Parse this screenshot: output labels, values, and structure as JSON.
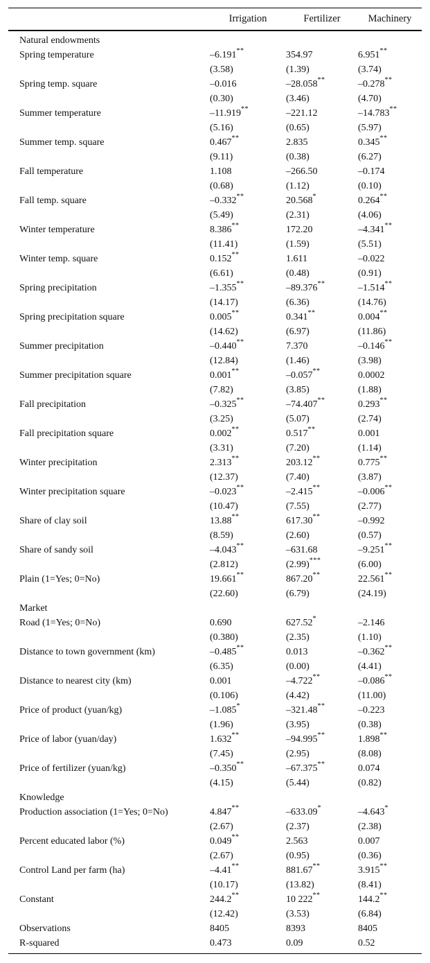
{
  "header": {
    "columns": [
      "Irrigation",
      "Fertilizer",
      "Machinery"
    ]
  },
  "table": {
    "rows": [
      {
        "type": "section",
        "label": "Natural endowments"
      },
      {
        "type": "var",
        "label": "Spring temperature",
        "cells": [
          {
            "coef": "–6.191",
            "stars": "**",
            "t": "(3.58)"
          },
          {
            "coef": "354.97",
            "t": "(1.39)"
          },
          {
            "coef": "6.951",
            "stars": "**",
            "t": "(3.74)"
          }
        ]
      },
      {
        "type": "var",
        "label": "Spring temp. square",
        "cells": [
          {
            "coef": "–0.016",
            "t": "(0.30)"
          },
          {
            "coef": "–28.058",
            "stars": "**",
            "t": "(3.46)"
          },
          {
            "coef": "–0.278",
            "stars": "**",
            "t": "(4.70)"
          }
        ]
      },
      {
        "type": "var",
        "label": "Summer temperature",
        "cells": [
          {
            "coef": "–11.919",
            "stars": "**",
            "t": "(5.16)"
          },
          {
            "coef": "–221.12",
            "t": "(0.65)"
          },
          {
            "coef": "–14.783",
            "stars": "**",
            "t": "(5.97)"
          }
        ]
      },
      {
        "type": "var",
        "label": "Summer temp. square",
        "cells": [
          {
            "coef": "0.467",
            "stars": "**",
            "t": "(9.11)"
          },
          {
            "coef": "2.835",
            "t": "(0.38)"
          },
          {
            "coef": "0.345",
            "stars": "**",
            "t": "(6.27)"
          }
        ]
      },
      {
        "type": "var",
        "label": "Fall temperature",
        "cells": [
          {
            "coef": "1.108",
            "t": "(0.68)"
          },
          {
            "coef": "–266.50",
            "t": "(1.12)"
          },
          {
            "coef": "–0.174",
            "t": "(0.10)"
          }
        ]
      },
      {
        "type": "var",
        "label": "Fall temp. square",
        "cells": [
          {
            "coef": "–0.332",
            "stars": "**",
            "t": "(5.49)"
          },
          {
            "coef": "20.568",
            "stars": "*",
            "t": "(2.31)"
          },
          {
            "coef": "0.264",
            "stars": "**",
            "t": "(4.06)"
          }
        ]
      },
      {
        "type": "var",
        "label": "Winter temperature",
        "cells": [
          {
            "coef": "8.386",
            "stars": "**",
            "t": "(11.41)"
          },
          {
            "coef": "172.20",
            "t": "(1.59)"
          },
          {
            "coef": "–4.341",
            "stars": "**",
            "t": "(5.51)"
          }
        ]
      },
      {
        "type": "var",
        "label": "Winter temp. square",
        "cells": [
          {
            "coef": "0.152",
            "stars": "**",
            "t": "(6.61)"
          },
          {
            "coef": "1.611",
            "t": "(0.48)"
          },
          {
            "coef": "–0.022",
            "t": "(0.91)"
          }
        ]
      },
      {
        "type": "var",
        "label": "Spring precipitation",
        "cells": [
          {
            "coef": "–1.355",
            "stars": "**",
            "t": "(14.17)"
          },
          {
            "coef": "–89.376",
            "stars": "**",
            "t": "(6.36)"
          },
          {
            "coef": "–1.514",
            "stars": "**",
            "t": "(14.76)"
          }
        ]
      },
      {
        "type": "var",
        "label": "Spring precipitation square",
        "cells": [
          {
            "coef": "0.005",
            "stars": "**",
            "t": "(14.62)"
          },
          {
            "coef": "0.341",
            "stars": "**",
            "t": "(6.97)"
          },
          {
            "coef": "0.004",
            "stars": "**",
            "t": "(11.86)"
          }
        ]
      },
      {
        "type": "var",
        "label": "Summer precipitation",
        "cells": [
          {
            "coef": "–0.440",
            "stars": "**",
            "t": "(12.84)"
          },
          {
            "coef": "7.370",
            "t": "(1.46)"
          },
          {
            "coef": "–0.146",
            "stars": "**",
            "t": "(3.98)"
          }
        ]
      },
      {
        "type": "var",
        "label": "Summer precipitation square",
        "cells": [
          {
            "coef": "0.001",
            "stars": "**",
            "t": "(7.82)"
          },
          {
            "coef": "–0.057",
            "stars": "**",
            "t": "(3.85)"
          },
          {
            "coef": "0.0002",
            "t": "(1.88)"
          }
        ]
      },
      {
        "type": "var",
        "label": "Fall precipitation",
        "cells": [
          {
            "coef": "–0.325",
            "stars": "**",
            "t": "(3.25)"
          },
          {
            "coef": "–74.407",
            "stars": "**",
            "t": "(5.07)"
          },
          {
            "coef": "0.293",
            "stars": "**",
            "t": "(2.74)"
          }
        ]
      },
      {
        "type": "var",
        "label": "Fall precipitation square",
        "cells": [
          {
            "coef": "0.002",
            "stars": "**",
            "t": "(3.31)"
          },
          {
            "coef": "0.517",
            "stars": "**",
            "t": "(7.20)"
          },
          {
            "coef": "0.001",
            "t": "(1.14)"
          }
        ]
      },
      {
        "type": "var",
        "label": "Winter precipitation",
        "cells": [
          {
            "coef": "2.313",
            "stars": "**",
            "t": "(12.37)"
          },
          {
            "coef": "203.12",
            "stars": "**",
            "t": "(7.40)"
          },
          {
            "coef": "0.775",
            "stars": "**",
            "t": "(3.87)"
          }
        ]
      },
      {
        "type": "var",
        "label": "Winter precipitation square",
        "cells": [
          {
            "coef": "–0.023",
            "stars": "**",
            "t": "(10.47)"
          },
          {
            "coef": "–2.415",
            "stars": "**",
            "t": "(7.55)"
          },
          {
            "coef": "–0.006",
            "stars": "**",
            "t": "(2.77)"
          }
        ]
      },
      {
        "type": "var",
        "label": "Share of clay soil",
        "cells": [
          {
            "coef": "13.88",
            "stars": "**",
            "t": "(8.59)"
          },
          {
            "coef": "617.30",
            "stars": "**",
            "t": "(2.60)"
          },
          {
            "coef": "–0.992",
            "t": "(0.57)"
          }
        ]
      },
      {
        "type": "var",
        "label": "Share of sandy soil",
        "cells": [
          {
            "coef": "–4.043",
            "stars": "**",
            "t": "(2.812)"
          },
          {
            "coef": "–631.68",
            "t": "(2.99)",
            "t_stars": "***"
          },
          {
            "coef": "–9.251",
            "stars": "**",
            "t": "(6.00)"
          }
        ]
      },
      {
        "type": "var",
        "label": "Plain (1=Yes; 0=No)",
        "cells": [
          {
            "coef": "19.661",
            "stars": "**",
            "t": "(22.60)"
          },
          {
            "coef": "867.20",
            "stars": "**",
            "t": "(6.79)"
          },
          {
            "coef": "22.561",
            "stars": "**",
            "t": "(24.19)"
          }
        ]
      },
      {
        "type": "section",
        "label": "Market"
      },
      {
        "type": "var",
        "label": "Road (1=Yes; 0=No)",
        "cells": [
          {
            "coef": "0.690",
            "t": "(0.380)"
          },
          {
            "coef": "627.52",
            "stars": "*",
            "t": "(2.35)"
          },
          {
            "coef": "–2.146",
            "t": "(1.10)"
          }
        ]
      },
      {
        "type": "var",
        "label": "Distance to town government (km)",
        "cells": [
          {
            "coef": "–0.485",
            "stars": "**",
            "t": "(6.35)"
          },
          {
            "coef": "0.013",
            "t": "(0.00)"
          },
          {
            "coef": "–0.362",
            "stars": "**",
            "t": "(4.41)"
          }
        ]
      },
      {
        "type": "var",
        "label": "Distance to nearest city (km)",
        "cells": [
          {
            "coef": "0.001",
            "t": "(0.106)"
          },
          {
            "coef": "–4.722",
            "stars": "**",
            "t": "(4.42)"
          },
          {
            "coef": "–0.086",
            "stars": "**",
            "t": "(11.00)"
          }
        ]
      },
      {
        "type": "var",
        "label": "Price of product (yuan/kg)",
        "cells": [
          {
            "coef": "–1.085",
            "stars": "*",
            "t": "(1.96)"
          },
          {
            "coef": "–321.48",
            "stars": "**",
            "t": "(3.95)"
          },
          {
            "coef": "–0.223",
            "t": "(0.38)"
          }
        ]
      },
      {
        "type": "var",
        "label": "Price of labor (yuan/day)",
        "cells": [
          {
            "coef": "1.632",
            "stars": "**",
            "t": "(7.45)"
          },
          {
            "coef": "–94.995",
            "stars": "**",
            "t": "(2.95)"
          },
          {
            "coef": "1.898",
            "stars": "**",
            "t": "(8.08)"
          }
        ]
      },
      {
        "type": "var",
        "label": "Price of fertilizer (yuan/kg)",
        "cells": [
          {
            "coef": "–0.350",
            "stars": "**",
            "t": "(4.15)"
          },
          {
            "coef": "–67.375",
            "stars": "**",
            "t": "(5.44)"
          },
          {
            "coef": "0.074",
            "t": "(0.82)"
          }
        ]
      },
      {
        "type": "section",
        "label": "Knowledge"
      },
      {
        "type": "var",
        "label": "Production association (1=Yes; 0=No)",
        "cells": [
          {
            "coef": "4.847",
            "stars": "**",
            "t": "(2.67)"
          },
          {
            "coef": "–633.09",
            "stars": "*",
            "t": "(2.37)"
          },
          {
            "coef": "–4.643",
            "stars": "*",
            "t": "(2.38)"
          }
        ]
      },
      {
        "type": "var",
        "label": "Percent educated labor (%)",
        "cells": [
          {
            "coef": "0.049",
            "stars": "**",
            "t": "(2.67)"
          },
          {
            "coef": "2.563",
            "t": "(0.95)"
          },
          {
            "coef": "0.007",
            "t": "(0.36)"
          }
        ]
      },
      {
        "type": "var",
        "label": "Control Land per farm (ha)",
        "cells": [
          {
            "coef": "–4.41",
            "stars": "**",
            "t": "(10.17)"
          },
          {
            "coef": "881.67",
            "stars": "**",
            "t": "(13.82)"
          },
          {
            "coef": "3.915",
            "stars": "**",
            "t": "(8.41)"
          }
        ]
      },
      {
        "type": "var",
        "label": "Constant",
        "cells": [
          {
            "coef": "244.2",
            "stars": "**",
            "t": "(12.42)"
          },
          {
            "coef": "10 222",
            "stars": "**",
            "t": "(3.53)"
          },
          {
            "coef": "144.2",
            "stars": "**",
            "t": "(6.84)"
          }
        ]
      },
      {
        "type": "single",
        "label": "Observations",
        "values": [
          "8405",
          "8393",
          "8405"
        ]
      },
      {
        "type": "single",
        "label": "R-squared",
        "values": [
          "0.473",
          "0.09",
          "0.52"
        ]
      }
    ]
  }
}
